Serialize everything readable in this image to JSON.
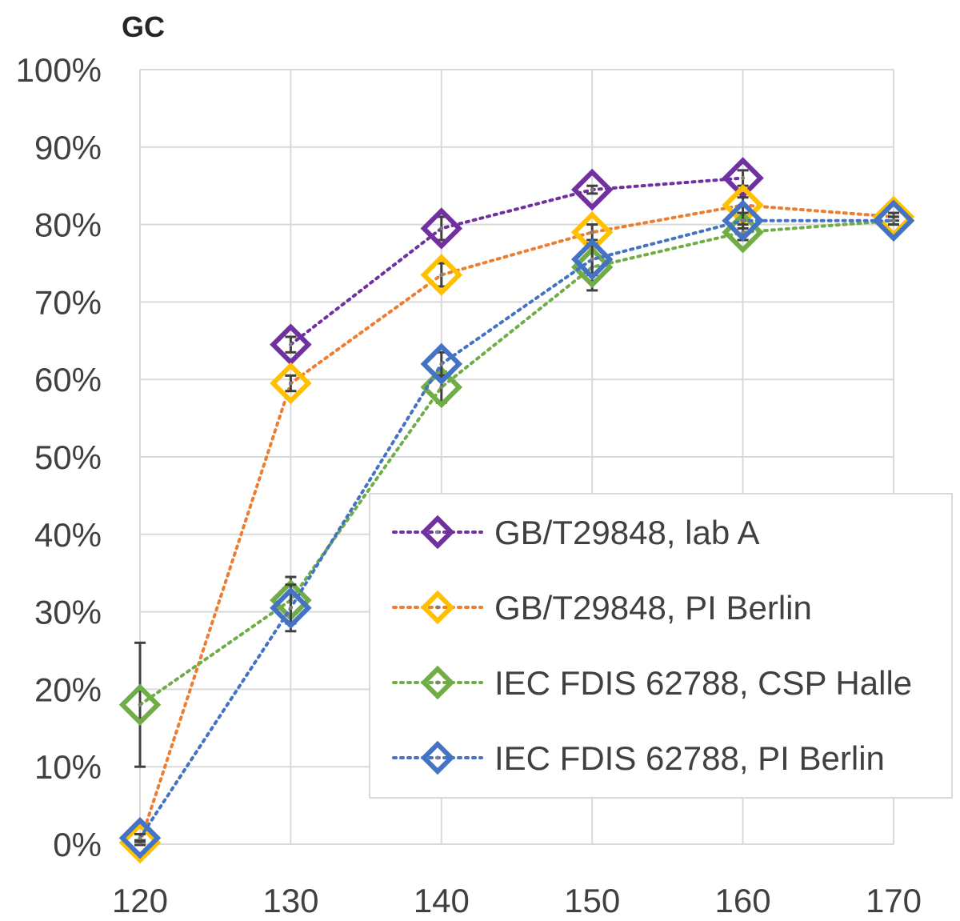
{
  "chart_data": {
    "type": "line",
    "title": "GC",
    "xlabel": "",
    "ylabel": "",
    "x": [
      120,
      130,
      140,
      150,
      160,
      170
    ],
    "xlim": [
      120,
      170
    ],
    "ylim": [
      0,
      100
    ],
    "y_tick_labels": [
      "0%",
      "10%",
      "20%",
      "30%",
      "40%",
      "50%",
      "60%",
      "70%",
      "80%",
      "90%",
      "100%"
    ],
    "x_tick_labels": [
      "120",
      "130",
      "140",
      "150",
      "160",
      "170"
    ],
    "grid": true,
    "legend_position": "center-right",
    "series": [
      {
        "name": "GB/T29848, lab A",
        "color": "#7030A0",
        "x": [
          130,
          140,
          150,
          160
        ],
        "values": [
          64.5,
          79.5,
          84.5,
          86
        ],
        "errors": [
          1.0,
          1.5,
          0.5,
          1.0
        ]
      },
      {
        "name": "GB/T29848, PI Berlin",
        "color": "#ED7D31",
        "marker_color": "#FFC000",
        "x": [
          120,
          130,
          140,
          150,
          160,
          170
        ],
        "values": [
          0.2,
          59.5,
          73.5,
          79,
          82.5,
          81
        ],
        "errors": [
          0.3,
          1.0,
          1.5,
          1.0,
          1.0,
          0.5
        ]
      },
      {
        "name": "IEC FDIS 62788, CSP Halle",
        "color": "#70AD47",
        "x": [
          120,
          130,
          140,
          150,
          160,
          170
        ],
        "values": [
          18,
          31.5,
          59,
          74.5,
          79,
          80.5
        ],
        "errors": [
          8,
          3.0,
          2.0,
          3.0,
          1.0,
          0.5
        ]
      },
      {
        "name": "IEC FDIS 62788, PI Berlin",
        "color": "#4472C4",
        "x": [
          120,
          130,
          140,
          150,
          160,
          170
        ],
        "values": [
          0.8,
          30.5,
          62,
          75.5,
          80.5,
          80.5
        ],
        "errors": [
          0.5,
          3.0,
          1.5,
          2.0,
          1.0,
          0.5
        ]
      }
    ]
  }
}
